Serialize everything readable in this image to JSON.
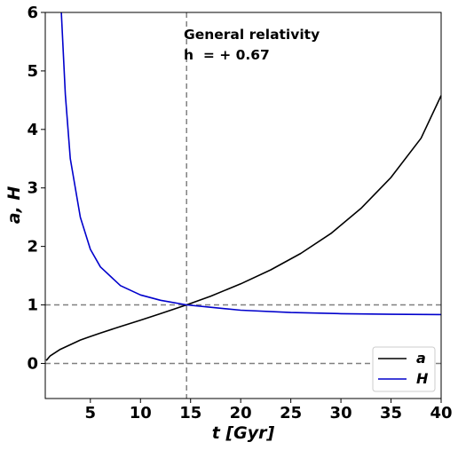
{
  "chart_data": {
    "type": "line",
    "xlabel": "t  [Gyr]",
    "ylabel": "a, H",
    "xlim": [
      0.5,
      40
    ],
    "ylim": [
      -0.6,
      6
    ],
    "xticks": [
      5,
      10,
      15,
      20,
      25,
      30,
      35,
      40
    ],
    "yticks": [
      0,
      1,
      2,
      3,
      4,
      5,
      6
    ],
    "grid": false,
    "legend_placement": "lower-right",
    "annotations": [
      {
        "text": "General relativity",
        "x": 14.5,
        "y": 5.55
      },
      {
        "text": "h  = + 0.67",
        "x": 14.5,
        "y": 5.2
      }
    ],
    "reference_lines": [
      {
        "orientation": "horizontal",
        "value": 1,
        "style": "dashed",
        "color": "#808080"
      },
      {
        "orientation": "horizontal",
        "value": 0,
        "style": "dashed",
        "color": "#808080"
      },
      {
        "orientation": "vertical",
        "value": 14.6,
        "style": "dashed",
        "color": "#808080"
      }
    ],
    "series": [
      {
        "name": "a",
        "color": "#000000",
        "x": [
          0.6,
          1,
          2,
          3,
          4,
          5,
          6,
          8,
          10,
          12,
          14.6,
          17,
          20,
          23,
          26,
          29,
          32,
          35,
          38,
          40
        ],
        "y": [
          0.05,
          0.13,
          0.24,
          0.32,
          0.4,
          0.46,
          0.52,
          0.63,
          0.74,
          0.85,
          1.0,
          1.15,
          1.36,
          1.6,
          1.88,
          2.22,
          2.65,
          3.18,
          3.85,
          4.58
        ]
      },
      {
        "name": "H",
        "color": "#0000cc",
        "x": [
          2.1,
          2.5,
          3,
          4,
          5,
          6,
          8,
          10,
          12,
          14.6,
          17,
          20,
          25,
          30,
          35,
          40
        ],
        "y": [
          6.0,
          4.6,
          3.5,
          2.5,
          1.95,
          1.65,
          1.33,
          1.17,
          1.08,
          1.0,
          0.96,
          0.91,
          0.87,
          0.85,
          0.84,
          0.835
        ]
      }
    ]
  }
}
